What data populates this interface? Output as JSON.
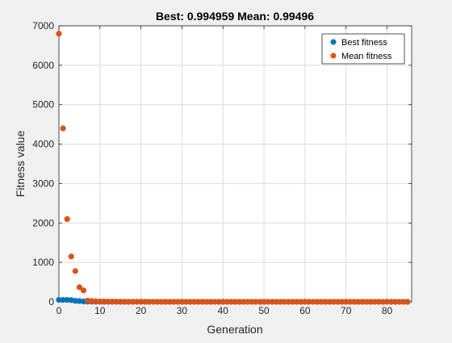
{
  "window": {
    "background": "#f0f0f0"
  },
  "chart_data": {
    "type": "scatter",
    "title": "Best: 0.994959 Mean: 0.99496",
    "xlabel": "Generation",
    "ylabel": "Fitness value",
    "xlim": [
      0,
      86
    ],
    "ylim": [
      0,
      7000
    ],
    "xticks": [
      0,
      10,
      20,
      30,
      40,
      50,
      60,
      70,
      80
    ],
    "yticks": [
      0,
      1000,
      2000,
      3000,
      4000,
      5000,
      6000,
      7000
    ],
    "grid": true,
    "legend_position": "top-right",
    "colors": {
      "best": "#0072bd",
      "mean": "#d95319",
      "grid": "#dcdcdc",
      "axes_bg": "#ffffff",
      "axis": "#262626"
    },
    "x": [
      0,
      1,
      2,
      3,
      4,
      5,
      6,
      7,
      8,
      9,
      10,
      11,
      12,
      13,
      14,
      15,
      16,
      17,
      18,
      19,
      20,
      21,
      22,
      23,
      24,
      25,
      26,
      27,
      28,
      29,
      30,
      31,
      32,
      33,
      34,
      35,
      36,
      37,
      38,
      39,
      40,
      41,
      42,
      43,
      44,
      45,
      46,
      47,
      48,
      49,
      50,
      51,
      52,
      53,
      54,
      55,
      56,
      57,
      58,
      59,
      60,
      61,
      62,
      63,
      64,
      65,
      66,
      67,
      68,
      69,
      70,
      71,
      72,
      73,
      74,
      75,
      76,
      77,
      78,
      79,
      80,
      81,
      82,
      83,
      84,
      85
    ],
    "series": [
      {
        "name": "Best fitness",
        "values": [
          50,
          50,
          50,
          45,
          25,
          20,
          10,
          5,
          5,
          3,
          3,
          2,
          2,
          2,
          1.5,
          1.5,
          1.2,
          1.2,
          1.1,
          1.1,
          1.1,
          1,
          1,
          1,
          1,
          1,
          1,
          1,
          1,
          1,
          1,
          1,
          1,
          1,
          1,
          1,
          1,
          1,
          1,
          1,
          1,
          1,
          1,
          1,
          1,
          1,
          1,
          1,
          1,
          1,
          1,
          1,
          1,
          1,
          1,
          1,
          1,
          1,
          1,
          1,
          1,
          1,
          1,
          1,
          1,
          1,
          1,
          1,
          1,
          1,
          1,
          1,
          1,
          1,
          1,
          1,
          1,
          1,
          1,
          1,
          1,
          1,
          1,
          1,
          1,
          0.994959
        ]
      },
      {
        "name": "Mean fitness",
        "values": [
          6800,
          4400,
          2100,
          1150,
          780,
          370,
          290,
          30,
          20,
          15,
          12,
          10,
          8,
          7,
          6,
          5,
          4,
          3.5,
          3,
          2.5,
          2,
          1.8,
          1.6,
          1.5,
          1.4,
          1.3,
          1.2,
          1.1,
          1.1,
          1.1,
          1,
          1,
          1,
          1,
          1,
          1,
          1,
          1,
          1,
          1,
          1,
          1,
          1,
          1,
          1,
          1,
          1,
          1,
          1,
          1,
          1,
          1,
          1,
          1,
          1,
          1,
          1,
          1,
          1,
          1,
          1,
          1,
          1,
          1,
          1,
          1,
          1,
          1,
          1,
          1,
          1,
          1,
          1,
          1,
          1,
          1,
          1,
          1,
          1,
          1,
          1,
          1,
          1,
          1,
          1,
          0.99496
        ]
      }
    ]
  }
}
